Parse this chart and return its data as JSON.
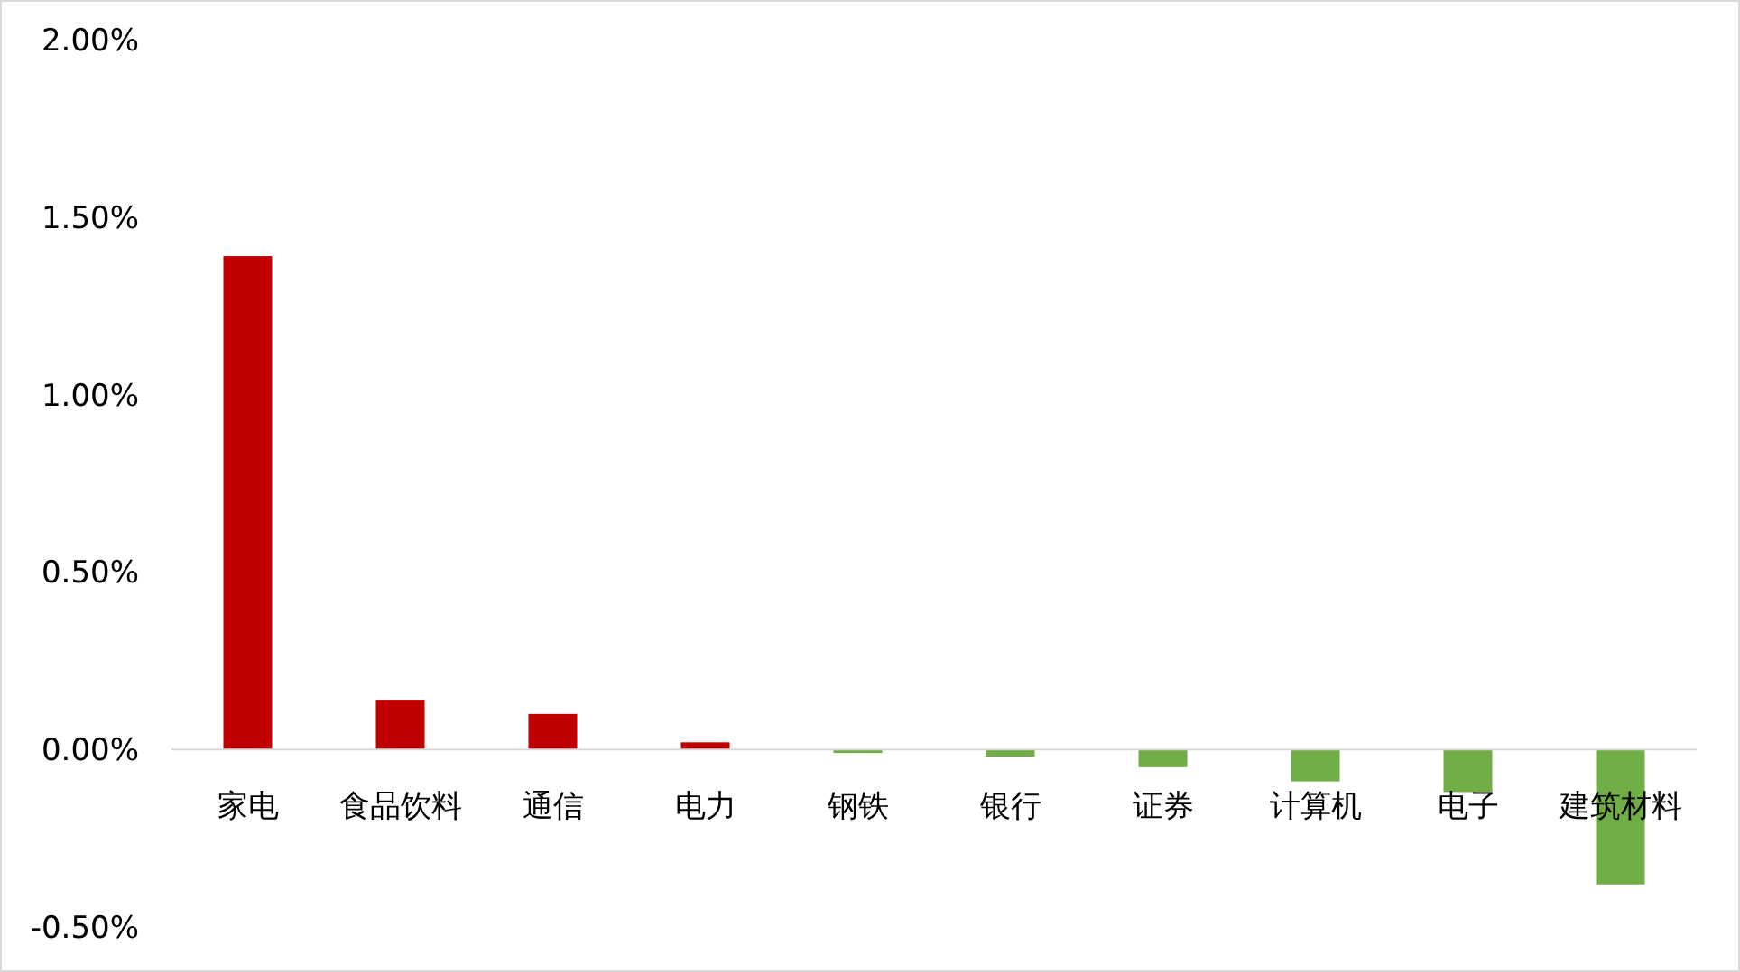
{
  "chart_data": {
    "type": "bar",
    "categories": [
      "家电",
      "食品饮料",
      "通信",
      "电力",
      "钢铁",
      "银行",
      "证券",
      "计算机",
      "电子",
      "建筑材料"
    ],
    "values": [
      1.39,
      0.14,
      0.1,
      0.02,
      -0.01,
      -0.02,
      -0.05,
      -0.09,
      -0.12,
      -0.38
    ],
    "colors": [
      "#c00000",
      "#c00000",
      "#c00000",
      "#c00000",
      "#70ad47",
      "#70ad47",
      "#70ad47",
      "#70ad47",
      "#70ad47",
      "#70ad47"
    ],
    "ylim": [
      -0.5,
      2
    ],
    "yticks": [
      {
        "value": -0.5,
        "label": "-0.50%"
      },
      {
        "value": 0,
        "label": "0.00%"
      },
      {
        "value": 0.5,
        "label": "0.50%"
      },
      {
        "value": 1,
        "label": "1.00%"
      },
      {
        "value": 1.5,
        "label": "1.50%"
      },
      {
        "value": 2,
        "label": "2.00%"
      }
    ]
  }
}
